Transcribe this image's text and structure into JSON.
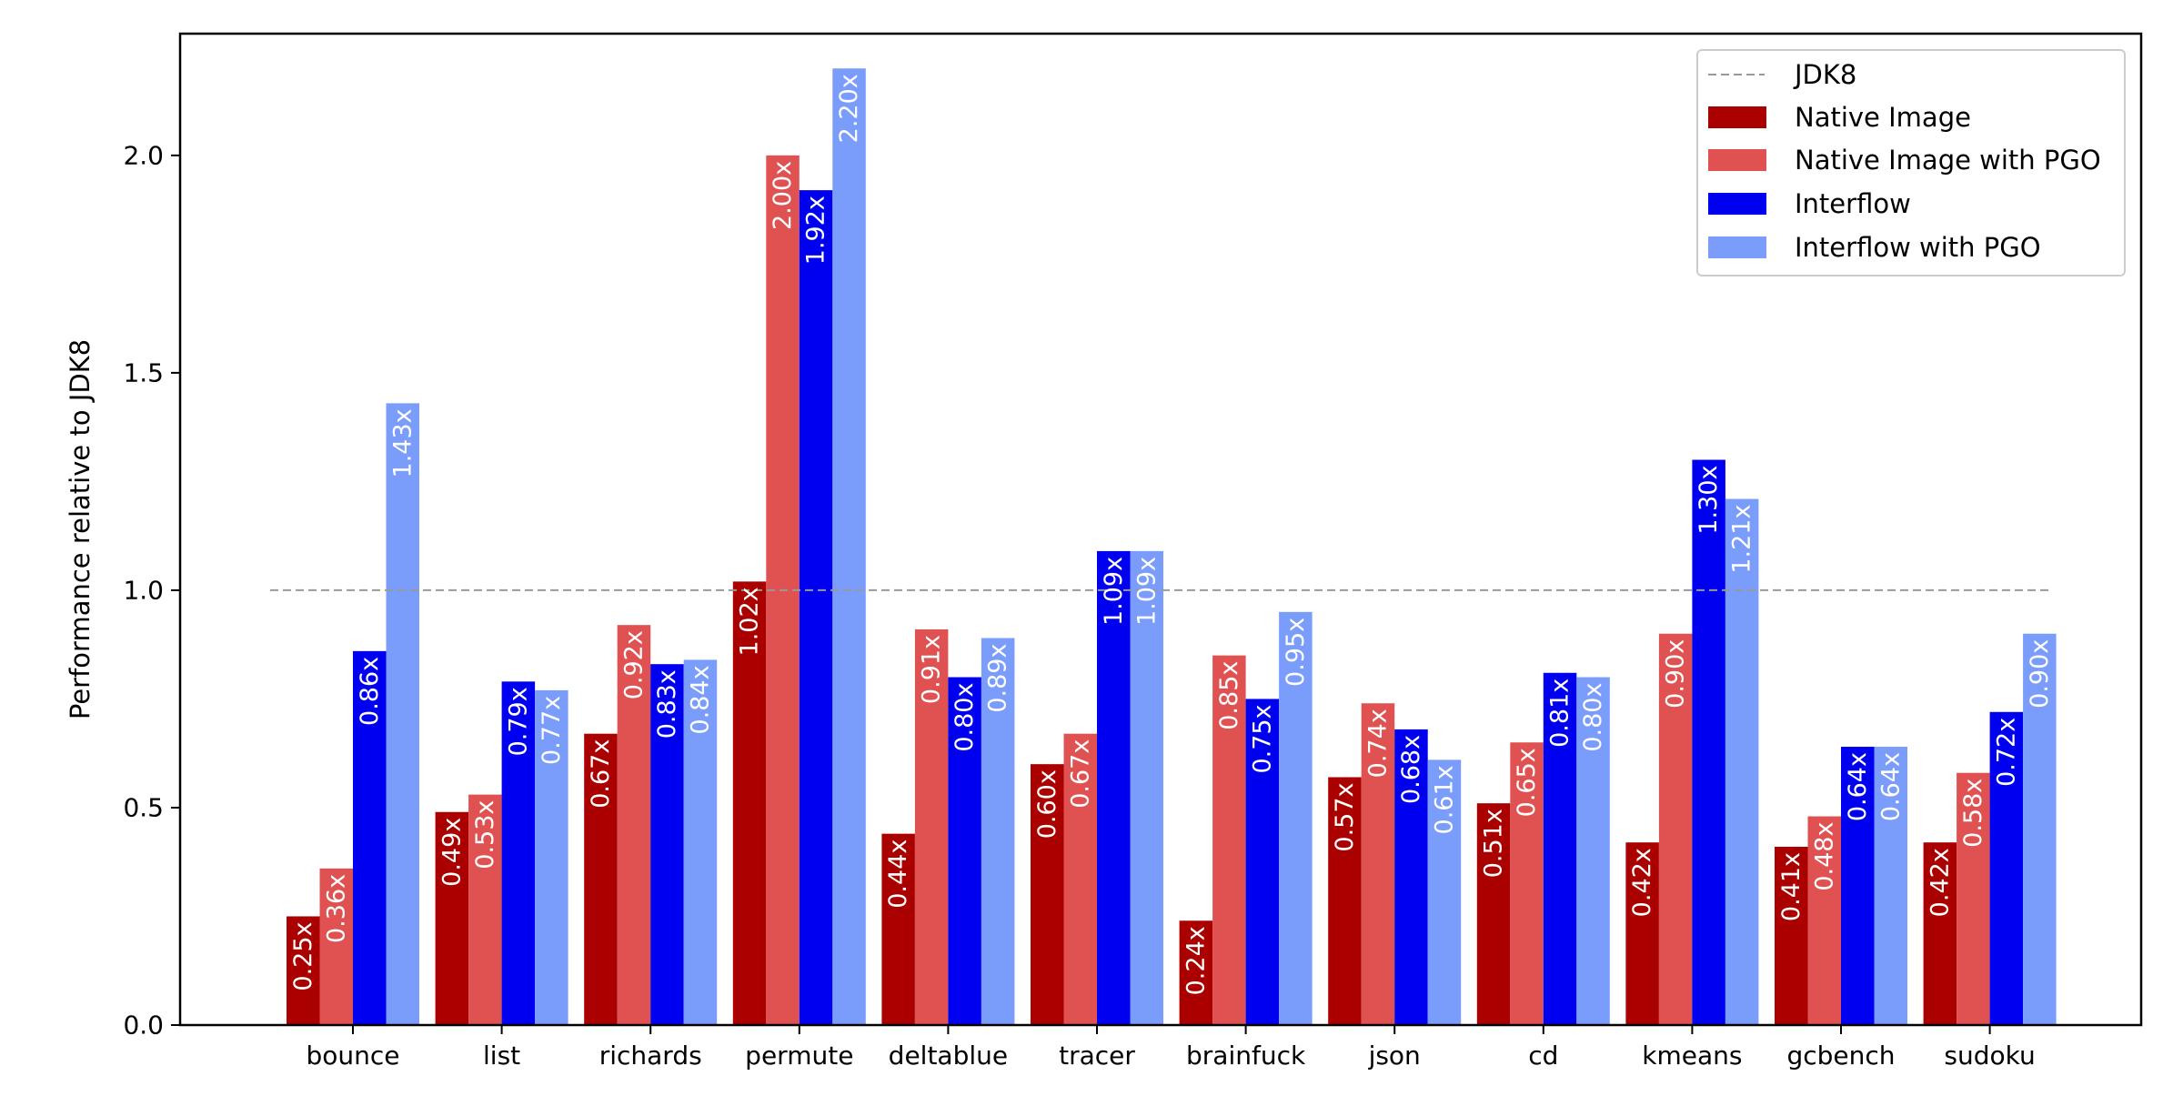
{
  "chart_data": {
    "type": "bar",
    "categories": [
      "bounce",
      "list",
      "richards",
      "permute",
      "deltablue",
      "tracer",
      "brainfuck",
      "json",
      "cd",
      "kmeans",
      "gcbench",
      "sudoku"
    ],
    "series": [
      {
        "name": "Native Image",
        "color": "#aa0000",
        "values": [
          0.25,
          0.49,
          0.67,
          1.02,
          0.44,
          0.6,
          0.24,
          0.57,
          0.51,
          0.42,
          0.41,
          0.42
        ],
        "labels": [
          "0.25x",
          "0.49x",
          "0.67x",
          "1.02x",
          "0.44x",
          "0.60x",
          "0.24x",
          "0.57x",
          "0.51x",
          "0.42x",
          "0.41x",
          "0.42x"
        ]
      },
      {
        "name": "Native Image with PGO",
        "color": "#e05252",
        "values": [
          0.36,
          0.53,
          0.92,
          2.0,
          0.91,
          0.67,
          0.85,
          0.74,
          0.65,
          0.9,
          0.48,
          0.58
        ],
        "labels": [
          "0.36x",
          "0.53x",
          "0.92x",
          "2.00x",
          "0.91x",
          "0.67x",
          "0.85x",
          "0.74x",
          "0.65x",
          "0.90x",
          "0.48x",
          "0.58x"
        ]
      },
      {
        "name": "Interflow",
        "color": "#0000f0",
        "values": [
          0.86,
          0.79,
          0.83,
          1.92,
          0.8,
          1.09,
          0.75,
          0.68,
          0.81,
          1.3,
          0.64,
          0.72
        ],
        "labels": [
          "0.86x",
          "0.79x",
          "0.83x",
          "1.92x",
          "0.80x",
          "1.09x",
          "0.75x",
          "0.68x",
          "0.81x",
          "1.30x",
          "0.64x",
          "0.72x"
        ]
      },
      {
        "name": "Interflow with PGO",
        "color": "#7a9cfb",
        "values": [
          1.43,
          0.77,
          0.84,
          2.2,
          0.89,
          1.09,
          0.95,
          0.61,
          0.8,
          1.21,
          0.64,
          0.9
        ],
        "labels": [
          "1.43x",
          "0.77x",
          "0.84x",
          "2.20x",
          "0.89x",
          "1.09x",
          "0.95x",
          "0.61x",
          "0.80x",
          "1.21x",
          "0.64x",
          "0.90x"
        ]
      }
    ],
    "reference_line": {
      "name": "JDK8",
      "value": 1.0,
      "style": "dashed",
      "color": "#999999"
    },
    "title": "",
    "xlabel": "",
    "ylabel": "Performance relative to JDK8",
    "ylim": [
      0,
      2.28
    ],
    "yticks": [
      0.0,
      0.5,
      1.0,
      1.5,
      2.0
    ],
    "ytick_labels": [
      "0.0",
      "0.5",
      "1.0",
      "1.5",
      "2.0"
    ],
    "grid": false,
    "legend": "top-right"
  }
}
